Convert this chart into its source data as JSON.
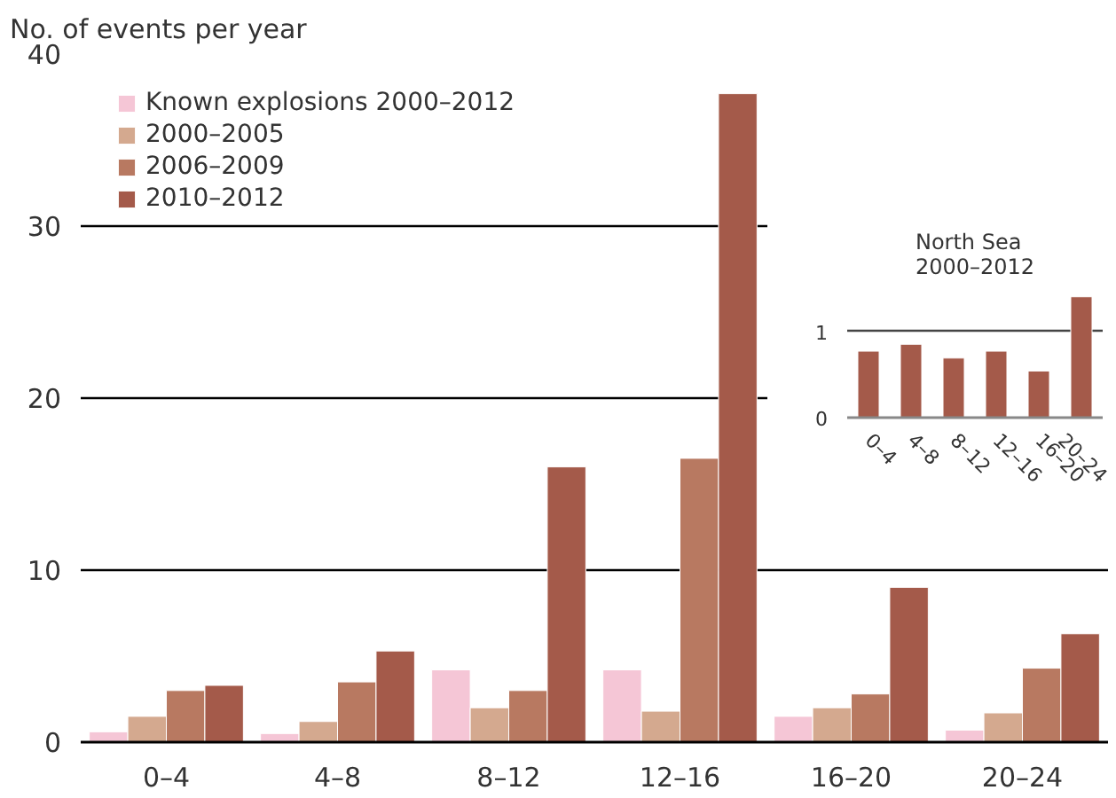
{
  "chart_data": [
    {
      "type": "bar",
      "ylabel": "No. of events per year",
      "categories": [
        "0–4",
        "4–8",
        "8–12",
        "12–16",
        "16–20",
        "20–24"
      ],
      "series": [
        {
          "name": "Known explosions 2000–2012",
          "color": "#f5c6d6",
          "values": [
            0.6,
            0.5,
            4.2,
            4.2,
            1.5,
            0.7
          ]
        },
        {
          "name": "2000–2005",
          "color": "#d4a98f",
          "values": [
            1.5,
            1.2,
            2.0,
            1.8,
            2.0,
            1.7
          ]
        },
        {
          "name": "2006–2009",
          "color": "#b87961",
          "values": [
            3.0,
            3.5,
            3.0,
            16.5,
            2.8,
            4.3
          ]
        },
        {
          "name": "2010–2012",
          "color": "#a45a4a",
          "values": [
            3.3,
            5.3,
            16.0,
            37.7,
            9.0,
            6.3
          ]
        }
      ],
      "ylim": [
        0,
        40
      ],
      "yticks": [
        0,
        10,
        20,
        30,
        40
      ],
      "grid": "y",
      "legend": "top left"
    },
    {
      "type": "bar",
      "title": "North Sea\n2000–2012",
      "categories": [
        "0–4",
        "4–8",
        "8–12",
        "12–16",
        "16–20",
        "20–24"
      ],
      "series": [
        {
          "color": "#a45a4a",
          "values": [
            0.77,
            0.85,
            0.69,
            0.77,
            0.54,
            1.4
          ]
        }
      ],
      "ylim": [
        0,
        1.5
      ],
      "yticks": [
        0,
        1
      ],
      "grid": "y"
    }
  ]
}
